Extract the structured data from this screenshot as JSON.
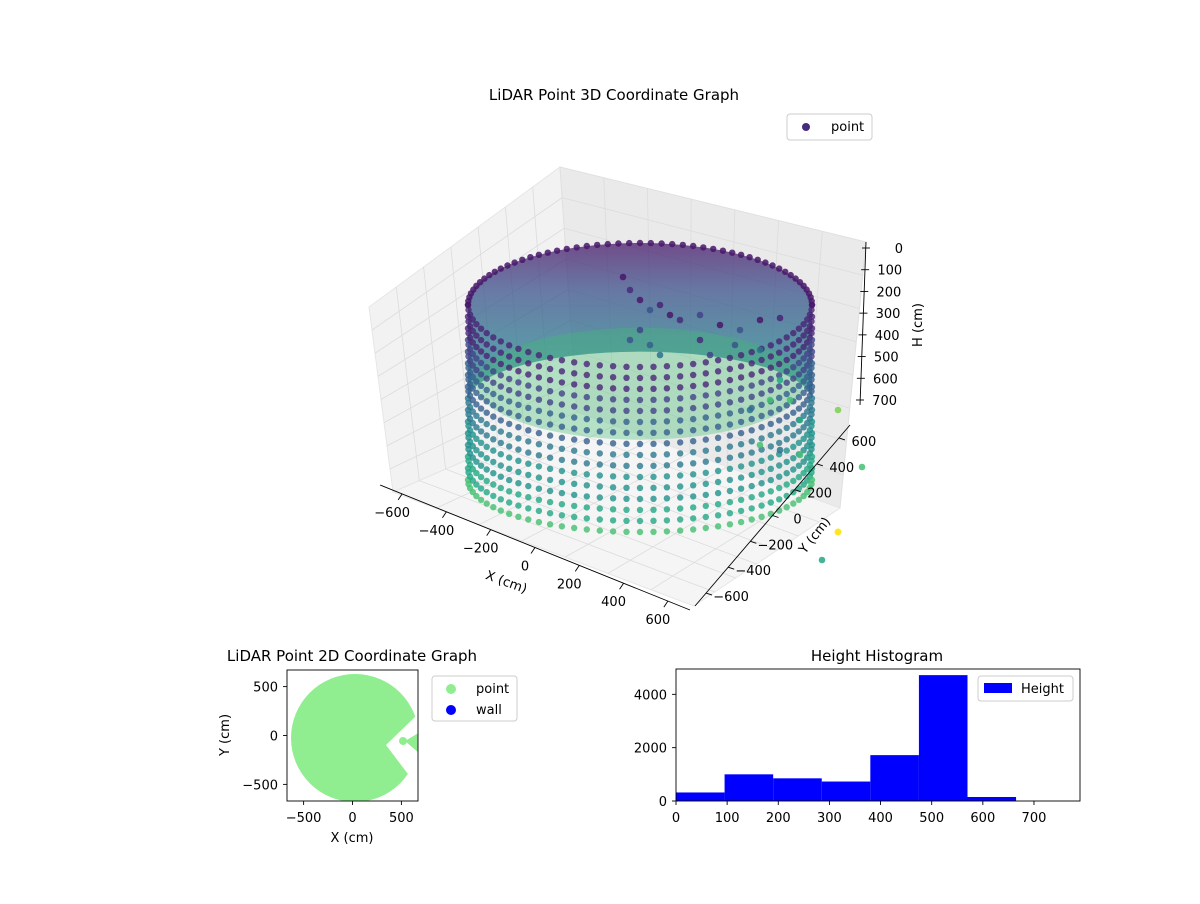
{
  "chart_data": [
    {
      "type": "scatter",
      "projection": "3d",
      "title": "LiDAR Point 3D Coordinate Graph",
      "xlabel": "X (cm)",
      "ylabel": "Y (cm)",
      "zlabel": "H (cm)",
      "xticks": [
        "−600",
        "−400",
        "−200",
        "0",
        "200",
        "400",
        "600"
      ],
      "yticks": [
        "600",
        "400",
        "200",
        "0",
        "−200",
        "−400",
        "−600"
      ],
      "zticks": [
        "0",
        "100",
        "200",
        "300",
        "400",
        "500",
        "600",
        "700"
      ],
      "zlim": [
        0,
        700
      ],
      "z_inverted": true,
      "colormap": "viridis",
      "legend": {
        "labels": [
          "point"
        ],
        "position": "top-right",
        "marker_color": "#472c7a"
      },
      "grid": true,
      "description_values": {
        "ring_radius_cm": 560,
        "height_range_cm": [
          0,
          700
        ]
      }
    },
    {
      "type": "scatter",
      "title": "LiDAR Point 2D Coordinate Graph",
      "xlabel": "X (cm)",
      "ylabel": "Y (cm)",
      "xticks": [
        "−500",
        "0",
        "500"
      ],
      "yticks": [
        "500",
        "0",
        "−500"
      ],
      "xlim": [
        -670,
        670
      ],
      "ylim": [
        -670,
        670
      ],
      "legend": {
        "position": "outside-right",
        "entries": [
          {
            "label": "point",
            "color": "#90ee90"
          },
          {
            "label": "wall",
            "color": "#0000ff"
          }
        ]
      }
    },
    {
      "type": "bar",
      "subtype": "histogram",
      "title": "Height Histogram",
      "bin_edges": [
        0,
        95,
        190,
        285,
        380,
        475,
        570,
        665,
        760
      ],
      "values": [
        320,
        1000,
        850,
        730,
        1720,
        4720,
        150,
        0
      ],
      "xticks": [
        "0",
        "100",
        "200",
        "300",
        "400",
        "500",
        "600",
        "700"
      ],
      "yticks": [
        "0",
        "2000",
        "4000"
      ],
      "xlim": [
        0,
        790
      ],
      "ylim": [
        0,
        4950
      ],
      "color": "#0000ff",
      "legend": {
        "labels": [
          "Height"
        ],
        "position": "top-right"
      }
    }
  ]
}
